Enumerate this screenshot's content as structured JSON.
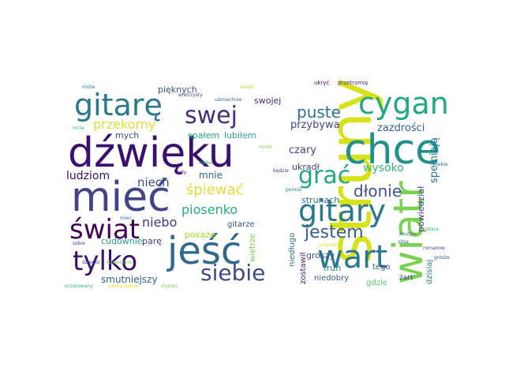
{
  "cloud": {
    "words": [
      {
        "text": "struny",
        "color": "#d8e219",
        "vertical": true
      },
      {
        "text": "dźwięku",
        "color": "#3b0f70",
        "vertical": false
      },
      {
        "text": "mieć",
        "color": "#414487",
        "vertical": false
      },
      {
        "text": "chce",
        "color": "#21918c",
        "vertical": false
      },
      {
        "text": "jeść",
        "color": "#31688e",
        "vertical": false
      },
      {
        "text": "wiatr",
        "color": "#7ad151",
        "vertical": true
      },
      {
        "text": "wart",
        "color": "#2a788e",
        "vertical": false
      },
      {
        "text": "gitarę",
        "color": "#2a788e",
        "vertical": false
      },
      {
        "text": "cygan",
        "color": "#22a884",
        "vertical": false
      },
      {
        "text": "gitary",
        "color": "#2a788e",
        "vertical": false
      },
      {
        "text": "tylko",
        "color": "#3b0f70",
        "vertical": false
      },
      {
        "text": "świat",
        "color": "#440154",
        "vertical": false
      },
      {
        "text": "siebie",
        "color": "#3e4989",
        "vertical": false
      },
      {
        "text": "swej",
        "color": "#472d7b",
        "vertical": false
      },
      {
        "text": "grać",
        "color": "#22a884",
        "vertical": false
      },
      {
        "text": "jestem",
        "color": "#355f8d",
        "vertical": false
      },
      {
        "text": "puste",
        "color": "#2c728e",
        "vertical": false
      },
      {
        "text": "dłonie",
        "color": "#3b528b",
        "vertical": false
      },
      {
        "text": "śpiewać",
        "color": "#e1dd37",
        "vertical": false
      },
      {
        "text": "przekorny",
        "color": "#e1dd37",
        "vertical": false
      },
      {
        "text": "piosenko",
        "color": "#27ad81",
        "vertical": false
      },
      {
        "text": "niebo",
        "color": "#453781",
        "vertical": false
      },
      {
        "text": "niech",
        "color": "#3e4a89",
        "vertical": false
      },
      {
        "text": "mnie",
        "color": "#31688e",
        "vertical": false
      },
      {
        "text": "ludziom",
        "color": "#3b0f70",
        "vertical": false
      },
      {
        "text": "wysoko",
        "color": "#35b779",
        "vertical": false
      },
      {
        "text": "przybywa",
        "color": "#404688",
        "vertical": false
      },
      {
        "text": "czary",
        "color": "#3f4788",
        "vertical": false
      },
      {
        "text": "zazdrości",
        "color": "#34618d",
        "vertical": false
      },
      {
        "text": "pięknych",
        "color": "#3e4c8a",
        "vertical": false
      },
      {
        "text": "swojej",
        "color": "#472c7a",
        "vertical": false
      },
      {
        "text": "mych",
        "color": "#3e4c8a",
        "vertical": false
      },
      {
        "text": "spałem",
        "color": "#20a386",
        "vertical": false
      },
      {
        "text": "lubiłem",
        "color": "#29af7f",
        "vertical": false
      },
      {
        "text": "gitarze",
        "color": "#3b528b",
        "vertical": false
      },
      {
        "text": "pokażę",
        "color": "#a8db34",
        "vertical": false
      },
      {
        "text": "cudownie",
        "color": "#21a685",
        "vertical": false
      },
      {
        "text": "parę",
        "color": "#453882",
        "vertical": false
      },
      {
        "text": "smutniejszy",
        "color": "#33638d",
        "vertical": false
      },
      {
        "text": "strunach",
        "color": "#2d708e",
        "vertical": false
      },
      {
        "text": "ukradł",
        "color": "#433e85",
        "vertical": false
      },
      {
        "text": "fruń",
        "color": "#287c8e",
        "vertical": false
      },
      {
        "text": "tego",
        "color": "#3b528b",
        "vertical": false
      },
      {
        "text": "groszy",
        "color": "#3b528b",
        "vertical": false
      },
      {
        "text": "gdzie",
        "color": "#56c667",
        "vertical": false
      },
      {
        "text": "żart",
        "color": "#3e4989",
        "vertical": false
      },
      {
        "text": "niedobry",
        "color": "#355e8d",
        "vertical": false
      },
      {
        "text": "spełniają",
        "color": "#2a788e",
        "vertical": true
      },
      {
        "text": "powiedział",
        "color": "#424086",
        "vertical": true
      },
      {
        "text": "dzisiaj",
        "color": "#287c8e",
        "vertical": true
      },
      {
        "text": "zostawił",
        "color": "#482374",
        "vertical": true
      },
      {
        "text": "niedługo",
        "color": "#2c728e",
        "vertical": true
      },
      {
        "text": "wietrze",
        "color": "#7ad151",
        "vertical": true
      },
      {
        "text": "przyniesz",
        "color": "#d2e21b",
        "vertical": false
      },
      {
        "text": "będzie",
        "color": "#3e4989",
        "vertical": false
      },
      {
        "text": "minie",
        "color": "#7ad151",
        "vertical": false
      },
      {
        "text": "cały",
        "color": "#472d7b",
        "vertical": false
      },
      {
        "text": "gitara",
        "color": "#35b779",
        "vertical": false
      },
      {
        "text": "dziecko",
        "color": "#3e4989",
        "vertical": false
      },
      {
        "text": "muzyki",
        "color": "#31688e",
        "vertical": false
      },
      {
        "text": "romanow",
        "color": "#3b528b",
        "vertical": false
      },
      {
        "text": "miec",
        "color": "#31688e",
        "vertical": false
      },
      {
        "text": "sobie",
        "color": "#3e4989",
        "vertical": false
      },
      {
        "text": "siebie",
        "color": "#35b779",
        "vertical": false
      },
      {
        "text": "ciebie",
        "color": "#2c728e",
        "vertical": false
      },
      {
        "text": "pomóż",
        "color": "#2a788e",
        "vertical": false
      },
      {
        "text": "ukryć",
        "color": "#440154",
        "vertical": false
      },
      {
        "text": "przetramię",
        "color": "#472d7b",
        "vertical": false
      },
      {
        "text": "wietrzysty",
        "color": "#3e4989",
        "vertical": false
      },
      {
        "text": "uśmiechnie",
        "color": "#31688e",
        "vertical": false
      },
      {
        "text": "dziewczyno",
        "color": "#6ece58",
        "vertical": false
      },
      {
        "text": "usiąść",
        "color": "#b5de2b",
        "vertical": false
      },
      {
        "text": "może",
        "color": "#2a788e",
        "vertical": false
      },
      {
        "text": "sitsa",
        "color": "#2c728e",
        "vertical": false
      },
      {
        "text": "mnie",
        "color": "#35b779",
        "vertical": false
      },
      {
        "text": "grosze",
        "color": "#3b528b",
        "vertical": false
      },
      {
        "text": "słyszeć",
        "color": "#7ad151",
        "vertical": false
      },
      {
        "text": "oczarowany",
        "color": "#35b779",
        "vertical": false
      },
      {
        "text": "posłuchajcie",
        "color": "#d8e219",
        "vertical": false
      }
    ]
  }
}
